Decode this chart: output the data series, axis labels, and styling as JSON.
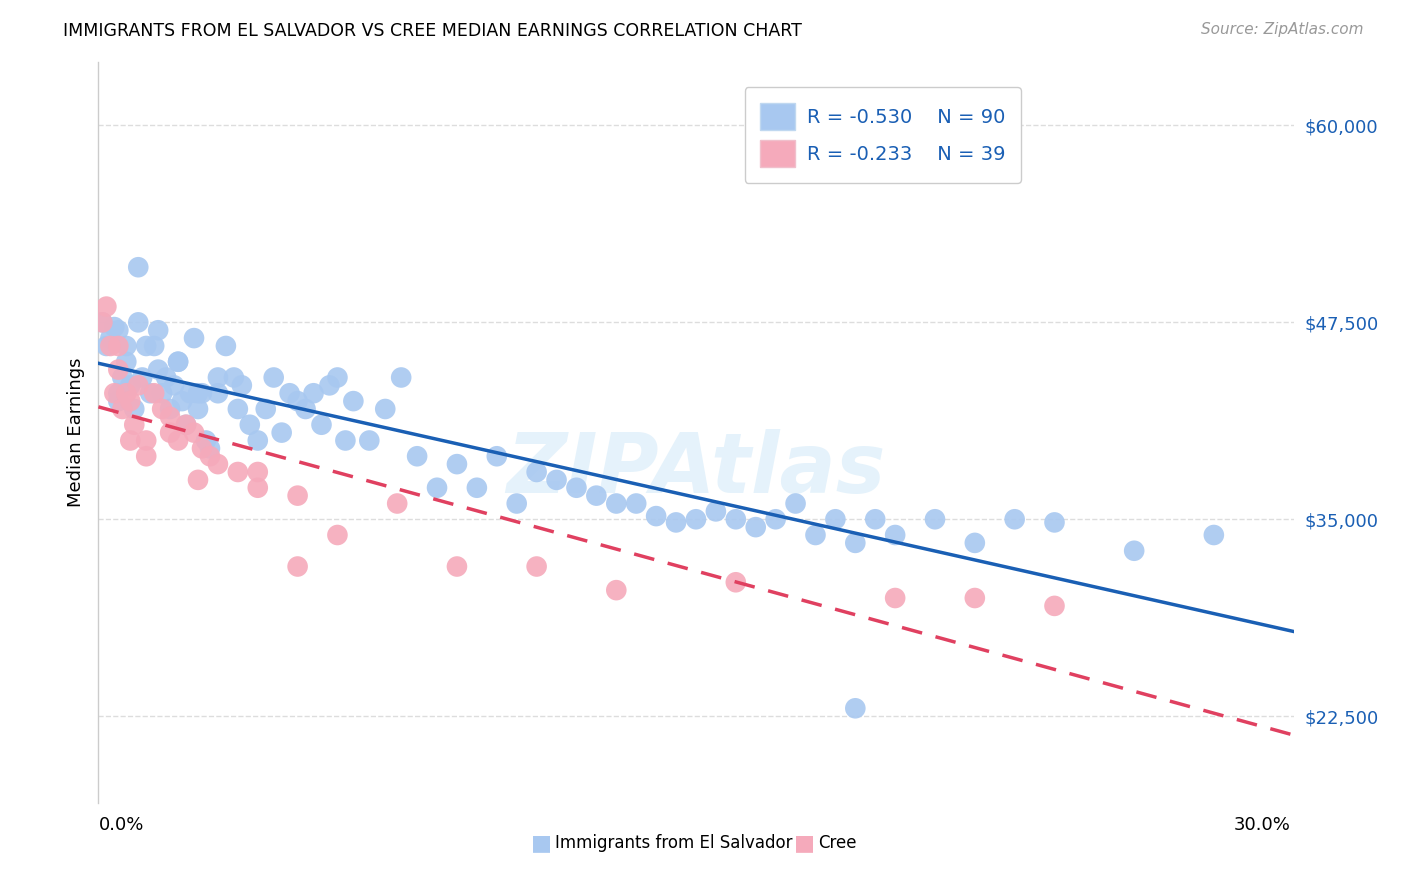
{
  "title": "IMMIGRANTS FROM EL SALVADOR VS CREE MEDIAN EARNINGS CORRELATION CHART",
  "source": "Source: ZipAtlas.com",
  "ylabel": "Median Earnings",
  "ytick_labels": [
    "$22,500",
    "$35,000",
    "$47,500",
    "$60,000"
  ],
  "ytick_values": [
    22500,
    35000,
    47500,
    60000
  ],
  "ymin": 17000,
  "ymax": 64000,
  "xmin": 0.0,
  "xmax": 0.3,
  "legend_r1": "R = -0.530",
  "legend_n1": "N = 90",
  "legend_r2": "R = -0.233",
  "legend_n2": "N = 39",
  "blue_face_color": "#a8c8f0",
  "pink_face_color": "#f5aabb",
  "blue_line_color": "#1a5fb4",
  "pink_line_color": "#e04060",
  "label_blue": "Immigrants from El Salvador",
  "label_pink": "Cree",
  "watermark": "ZIPAtlas",
  "blue_x": [
    0.001,
    0.002,
    0.003,
    0.004,
    0.005,
    0.005,
    0.006,
    0.007,
    0.008,
    0.009,
    0.01,
    0.011,
    0.012,
    0.013,
    0.014,
    0.015,
    0.016,
    0.017,
    0.018,
    0.019,
    0.02,
    0.021,
    0.022,
    0.023,
    0.024,
    0.025,
    0.026,
    0.027,
    0.028,
    0.03,
    0.032,
    0.034,
    0.036,
    0.038,
    0.04,
    0.042,
    0.044,
    0.046,
    0.048,
    0.05,
    0.052,
    0.054,
    0.056,
    0.058,
    0.06,
    0.062,
    0.064,
    0.068,
    0.072,
    0.076,
    0.08,
    0.085,
    0.09,
    0.095,
    0.1,
    0.105,
    0.11,
    0.115,
    0.12,
    0.125,
    0.13,
    0.135,
    0.14,
    0.145,
    0.15,
    0.155,
    0.16,
    0.165,
    0.17,
    0.175,
    0.18,
    0.185,
    0.19,
    0.195,
    0.2,
    0.21,
    0.22,
    0.23,
    0.24,
    0.26,
    0.005,
    0.007,
    0.01,
    0.015,
    0.02,
    0.025,
    0.03,
    0.035,
    0.19,
    0.28
  ],
  "blue_y": [
    47500,
    46000,
    46500,
    47200,
    43000,
    42500,
    44000,
    45000,
    43500,
    42000,
    51000,
    44000,
    46000,
    43000,
    46000,
    44500,
    43000,
    44000,
    42000,
    43500,
    45000,
    42500,
    41000,
    43000,
    46500,
    42000,
    43000,
    40000,
    39500,
    43000,
    46000,
    44000,
    43500,
    41000,
    40000,
    42000,
    44000,
    40500,
    43000,
    42500,
    42000,
    43000,
    41000,
    43500,
    44000,
    40000,
    42500,
    40000,
    42000,
    44000,
    39000,
    37000,
    38500,
    37000,
    39000,
    36000,
    38000,
    37500,
    37000,
    36500,
    36000,
    36000,
    35200,
    34800,
    35000,
    35500,
    35000,
    34500,
    35000,
    36000,
    34000,
    35000,
    33500,
    35000,
    34000,
    35000,
    33500,
    35000,
    34800,
    33000,
    47000,
    46000,
    47500,
    47000,
    45000,
    43000,
    44000,
    42000,
    23000,
    34000
  ],
  "pink_x": [
    0.001,
    0.002,
    0.003,
    0.004,
    0.005,
    0.006,
    0.007,
    0.008,
    0.009,
    0.01,
    0.012,
    0.014,
    0.016,
    0.018,
    0.02,
    0.022,
    0.024,
    0.026,
    0.028,
    0.03,
    0.035,
    0.04,
    0.05,
    0.06,
    0.075,
    0.09,
    0.11,
    0.13,
    0.16,
    0.2,
    0.005,
    0.008,
    0.012,
    0.018,
    0.025,
    0.04,
    0.05,
    0.22,
    0.24
  ],
  "pink_y": [
    47500,
    48500,
    46000,
    43000,
    44500,
    42000,
    43000,
    42500,
    41000,
    43500,
    40000,
    43000,
    42000,
    41500,
    40000,
    41000,
    40500,
    39500,
    39000,
    38500,
    38000,
    37000,
    36500,
    34000,
    36000,
    32000,
    32000,
    30500,
    31000,
    30000,
    46000,
    40000,
    39000,
    40500,
    37500,
    38000,
    32000,
    30000,
    29500
  ]
}
